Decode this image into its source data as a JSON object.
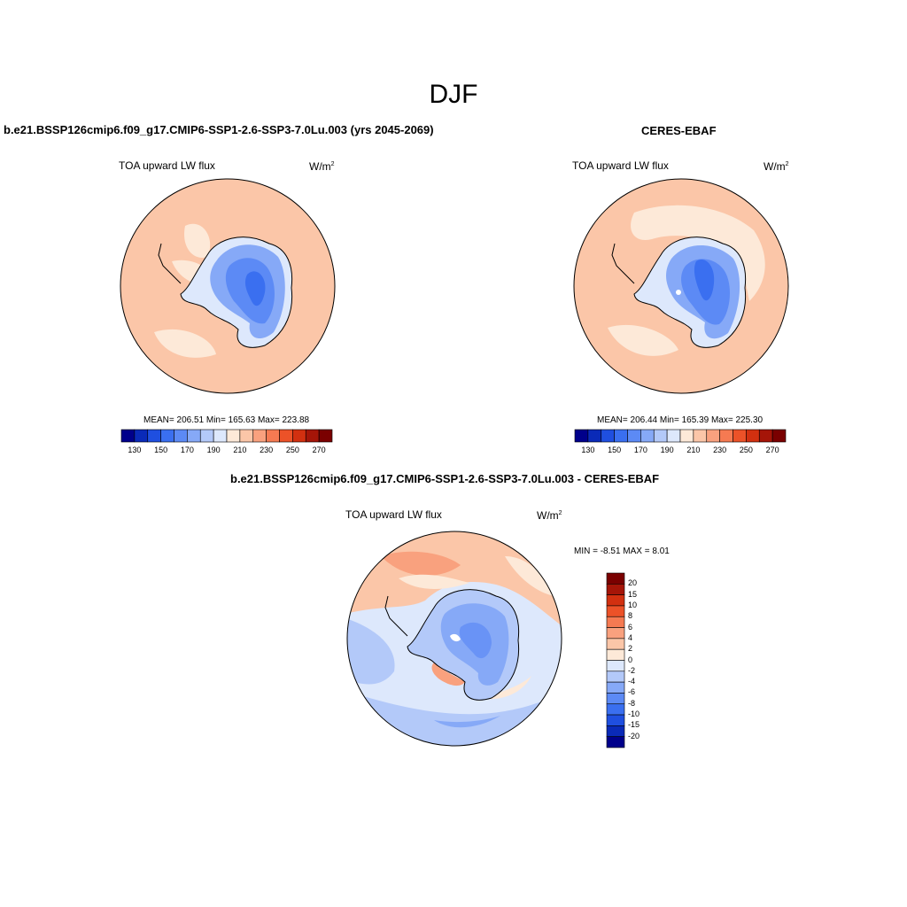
{
  "title": "DJF",
  "panels": [
    {
      "title": "b.e21.BSSP126cmip6.f09_g17.CMIP6-SSP1-2.6-SSP3-7.0Lu.003 (yrs 2045-2069)",
      "variable": "TOA upward LW flux",
      "units": "W/m",
      "units_sup": "2",
      "stats": "MEAN= 206.51   Min= 165.63   Max= 223.88"
    },
    {
      "title": "CERES-EBAF",
      "variable": "TOA upward LW flux",
      "units": "W/m",
      "units_sup": "2",
      "stats": "MEAN= 206.44   Min= 165.39   Max= 225.30"
    },
    {
      "title": "b.e21.BSSP126cmip6.f09_g17.CMIP6-SSP1-2.6-SSP3-7.0Lu.003 - CERES-EBAF",
      "variable": "TOA upward LW flux",
      "units": "W/m",
      "units_sup": "2",
      "stats": "MIN =  -8.51 MAX =   8.01"
    }
  ],
  "chart_data": [
    {
      "type": "heatmap",
      "projection": "south-polar-stereographic",
      "colorbar": {
        "orientation": "horizontal",
        "tick_labels": [
          "130",
          "150",
          "170",
          "190",
          "210",
          "230",
          "250",
          "270"
        ],
        "colors": [
          "#00008b",
          "#0a2ab8",
          "#1f4fe0",
          "#3a6ff0",
          "#5c8af5",
          "#86a9f7",
          "#b3c9f9",
          "#dde8fc",
          "#fde9d8",
          "#fbc6a8",
          "#f9a17e",
          "#f57a52",
          "#ec5228",
          "#d23010",
          "#a51508",
          "#7a0000"
        ]
      },
      "mean": 206.51,
      "min": 165.63,
      "max": 223.88
    },
    {
      "type": "heatmap",
      "projection": "south-polar-stereographic",
      "colorbar": {
        "orientation": "horizontal",
        "tick_labels": [
          "130",
          "150",
          "170",
          "190",
          "210",
          "230",
          "250",
          "270"
        ],
        "colors": [
          "#00008b",
          "#0a2ab8",
          "#1f4fe0",
          "#3a6ff0",
          "#5c8af5",
          "#86a9f7",
          "#b3c9f9",
          "#dde8fc",
          "#fde9d8",
          "#fbc6a8",
          "#f9a17e",
          "#f57a52",
          "#ec5228",
          "#d23010",
          "#a51508",
          "#7a0000"
        ]
      },
      "mean": 206.44,
      "min": 165.39,
      "max": 225.3
    },
    {
      "type": "heatmap",
      "projection": "south-polar-stereographic",
      "colorbar": {
        "orientation": "vertical",
        "tick_labels": [
          "20",
          "15",
          "10",
          "8",
          "6",
          "4",
          "2",
          "0",
          "-2",
          "-4",
          "-6",
          "-8",
          "-10",
          "-15",
          "-20"
        ],
        "colors": [
          "#7a0000",
          "#a51508",
          "#d23010",
          "#ec5228",
          "#f57a52",
          "#f9a17e",
          "#fbc6a8",
          "#fde9d8",
          "#dde8fc",
          "#b3c9f9",
          "#86a9f7",
          "#5c8af5",
          "#3a6ff0",
          "#1f4fe0",
          "#0a2ab8",
          "#00008b"
        ]
      },
      "min": -8.51,
      "max": 8.01
    }
  ]
}
